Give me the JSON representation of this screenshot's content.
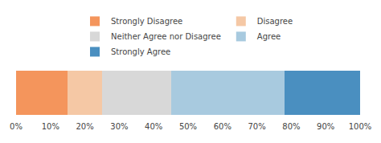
{
  "chart_data": {
    "type": "bar",
    "orientation": "horizontal",
    "stacked": true,
    "categories": [
      null
    ],
    "series": [
      {
        "name": "Strongly Disagree",
        "color": "#F4955C",
        "values": [
          15
        ]
      },
      {
        "name": "Disagree",
        "color": "#F5C8A5",
        "values": [
          10
        ]
      },
      {
        "name": "Neither Agree nor Disagree",
        "color": "#D8D8D8",
        "values": [
          20
        ]
      },
      {
        "name": "Agree",
        "color": "#A8CADF",
        "values": [
          33
        ]
      },
      {
        "name": "Strongly Agree",
        "color": "#4A8FC0",
        "values": [
          22
        ]
      }
    ],
    "xlim": [
      0,
      100
    ],
    "xticks": [
      {
        "value": 0,
        "label": "0%"
      },
      {
        "value": 10,
        "label": "10%"
      },
      {
        "value": 20,
        "label": "20%"
      },
      {
        "value": 30,
        "label": "30%"
      },
      {
        "value": 40,
        "label": "40%"
      },
      {
        "value": 50,
        "label": "50%"
      },
      {
        "value": 60,
        "label": "60%"
      },
      {
        "value": 70,
        "label": "70%"
      },
      {
        "value": 80,
        "label": "80%"
      },
      {
        "value": 90,
        "label": "90%"
      },
      {
        "value": 100,
        "label": "100%"
      }
    ],
    "tick_labels": "x",
    "grid": false,
    "legend": "top"
  }
}
